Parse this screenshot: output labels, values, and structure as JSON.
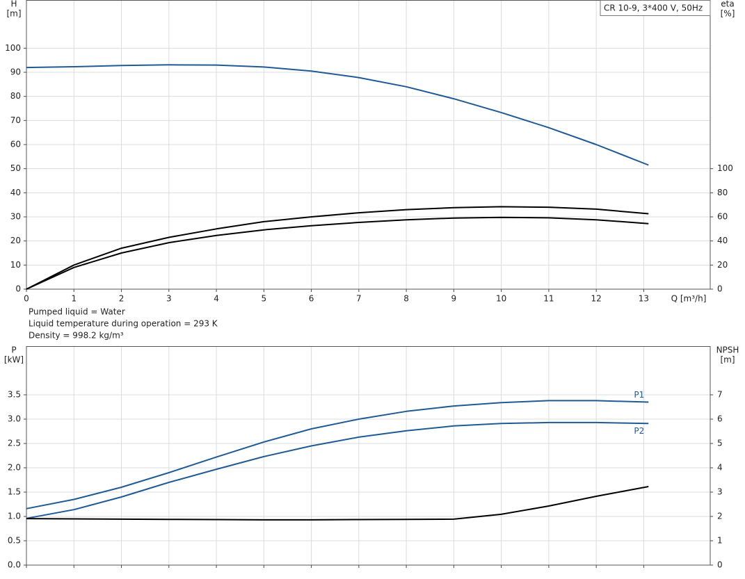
{
  "chart_data": [
    {
      "type": "line",
      "annotation": "CR 10-9, 3*400 V, 50Hz",
      "xlabel": "Q [m³/h]",
      "ylabel": [
        "H",
        "[m]"
      ],
      "y2label": [
        "eta",
        "[%]"
      ],
      "grid": true,
      "x": [
        0,
        1,
        2,
        3,
        4,
        5,
        6,
        7,
        8,
        9,
        10,
        11,
        12,
        13.1
      ],
      "xlim": [
        0,
        14.4
      ],
      "xticks": [
        0,
        1,
        2,
        3,
        4,
        5,
        6,
        7,
        8,
        9,
        10,
        11,
        12,
        13
      ],
      "ylim": [
        0,
        120
      ],
      "yticks": [
        0,
        10,
        20,
        30,
        40,
        50,
        60,
        70,
        80,
        90,
        100
      ],
      "y2lim": [
        0,
        240
      ],
      "y2ticks": [
        0,
        20,
        40,
        60,
        80,
        100
      ],
      "series": [
        {
          "color": "#1f5a94",
          "values": [
            92,
            92.3,
            92.8,
            93.1,
            93,
            92.2,
            90.5,
            87.8,
            84,
            79,
            73.3,
            67,
            60,
            51.5
          ]
        },
        {
          "color": "#000000",
          "axis": "y2",
          "values": [
            0,
            20,
            34,
            43,
            50,
            56,
            60,
            63.4,
            66,
            67.6,
            68.4,
            68,
            66.4,
            62.6
          ]
        },
        {
          "color": "#000000",
          "axis": "y2",
          "values": [
            0,
            18,
            30,
            38.6,
            44.6,
            49.2,
            52.6,
            55.4,
            57.6,
            59,
            59.6,
            59.2,
            57.6,
            54.4
          ]
        }
      ]
    },
    {
      "type": "line",
      "ylabel": [
        "P",
        "[kW]"
      ],
      "y2label": [
        "NPSH",
        "[m]"
      ],
      "grid": true,
      "x": [
        0,
        1,
        2,
        3,
        4,
        5,
        6,
        7,
        8,
        9,
        10,
        11,
        12,
        13.1
      ],
      "xlim": [
        0,
        14.4
      ],
      "ylim": [
        0,
        4.5
      ],
      "yticks": [
        {
          "value": 0,
          "label": "0.0"
        },
        0.5,
        {
          "value": 1,
          "label": "1.0"
        },
        1.5,
        {
          "value": 2,
          "label": "2.0"
        },
        2.5,
        {
          "value": 3,
          "label": "3.0"
        },
        3.5
      ],
      "y2lim": [
        0,
        9
      ],
      "y2ticks": [
        0,
        1,
        2,
        3,
        4,
        5,
        6,
        7
      ],
      "series": [
        {
          "name": "P1",
          "color": "#1f5a94",
          "values": [
            1.16,
            1.35,
            1.6,
            1.9,
            2.22,
            2.53,
            2.8,
            3.0,
            3.16,
            3.27,
            3.34,
            3.38,
            3.38,
            3.35
          ]
        },
        {
          "name": "P2",
          "color": "#1f5a94",
          "values": [
            0.96,
            1.14,
            1.4,
            1.7,
            1.97,
            2.23,
            2.45,
            2.63,
            2.76,
            2.86,
            2.91,
            2.93,
            2.93,
            2.91
          ]
        },
        {
          "color": "#000000",
          "axis": "y2",
          "values": [
            1.91,
            1.9,
            1.89,
            1.88,
            1.87,
            1.86,
            1.86,
            1.87,
            1.88,
            1.89,
            2.09,
            2.43,
            2.83,
            3.23
          ]
        }
      ]
    }
  ],
  "notes": [
    "Pumped liquid = Water",
    "Liquid temperature during operation = 293 K",
    "Density = 998.2 kg/m³"
  ]
}
